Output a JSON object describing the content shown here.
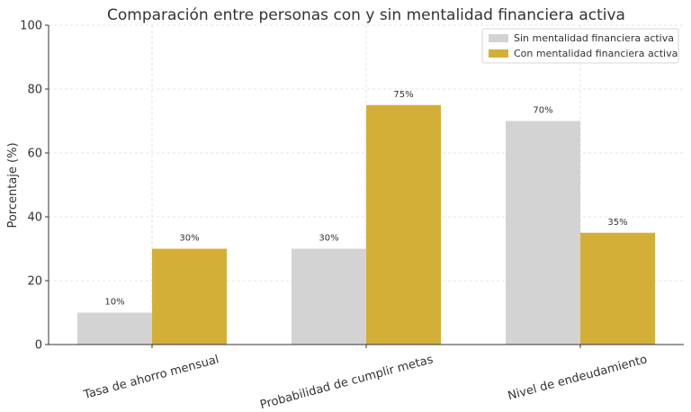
{
  "chart_data": {
    "type": "bar",
    "title": "Comparación entre personas con y sin mentalidad financiera activa",
    "xlabel": "",
    "ylabel": "Porcentaje (%)",
    "ylim": [
      0,
      100
    ],
    "yticks": [
      0,
      20,
      40,
      60,
      80,
      100
    ],
    "grid": true,
    "legend_position": "top-right",
    "categories": [
      "Tasa de ahorro mensual",
      "Probabilidad de cumplir metas",
      "Nivel de endeudamiento"
    ],
    "series": [
      {
        "name": "Sin mentalidad financiera activa",
        "values": [
          10,
          30,
          70
        ],
        "labels": [
          "10%",
          "30%",
          "70%"
        ],
        "color": "#d3d3d3"
      },
      {
        "name": "Con mentalidad financiera activa",
        "values": [
          30,
          75,
          35
        ],
        "labels": [
          "30%",
          "75%",
          "35%"
        ],
        "color": "#d4af37"
      }
    ]
  }
}
